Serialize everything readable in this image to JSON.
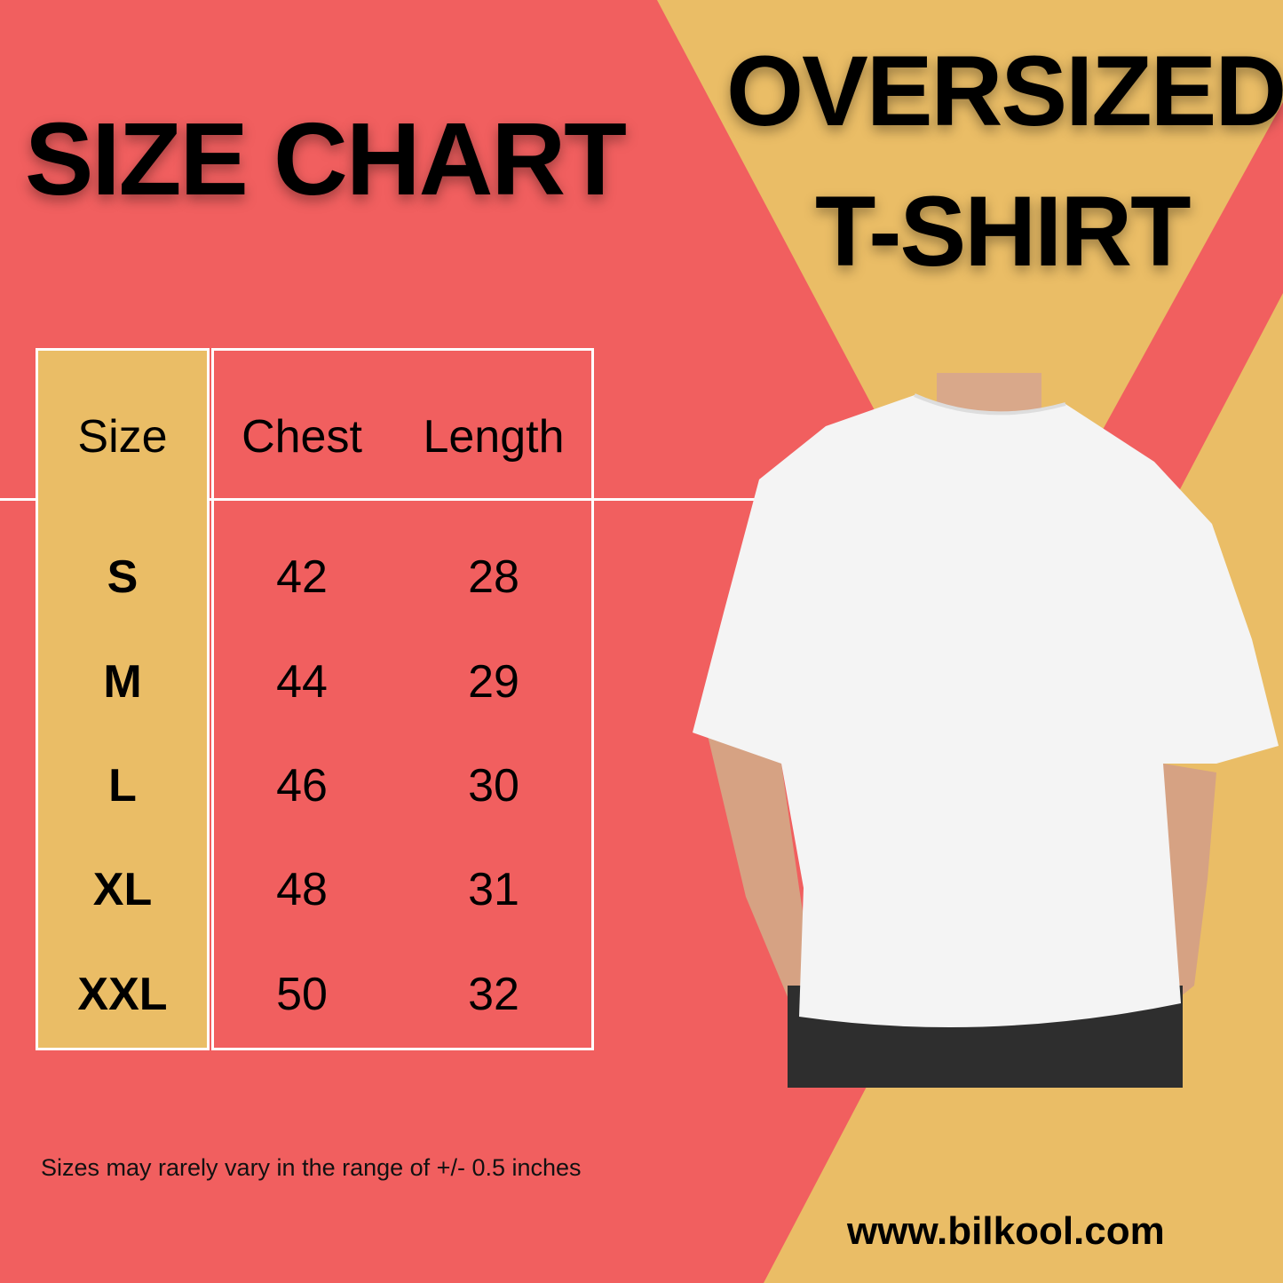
{
  "colors": {
    "red": "#F15F5F",
    "yellow": "#EABD66",
    "white": "#FFFFFF",
    "text": "#000000"
  },
  "title": "SIZE CHART",
  "product_title": {
    "line1": "OVERSIZED",
    "line2": "T-SHIRT"
  },
  "table": {
    "headers": [
      "Size",
      "Chest",
      "Length"
    ],
    "rows": [
      [
        "S",
        "42",
        "28"
      ],
      [
        "M",
        "44",
        "29"
      ],
      [
        "L",
        "46",
        "30"
      ],
      [
        "XL",
        "48",
        "31"
      ],
      [
        "XXL",
        "50",
        "32"
      ]
    ]
  },
  "note": "Sizes may rarely vary in the range of +/- 0.5 inches",
  "website": "www.bilkool.com",
  "image": "white oversized t-shirt model photo"
}
